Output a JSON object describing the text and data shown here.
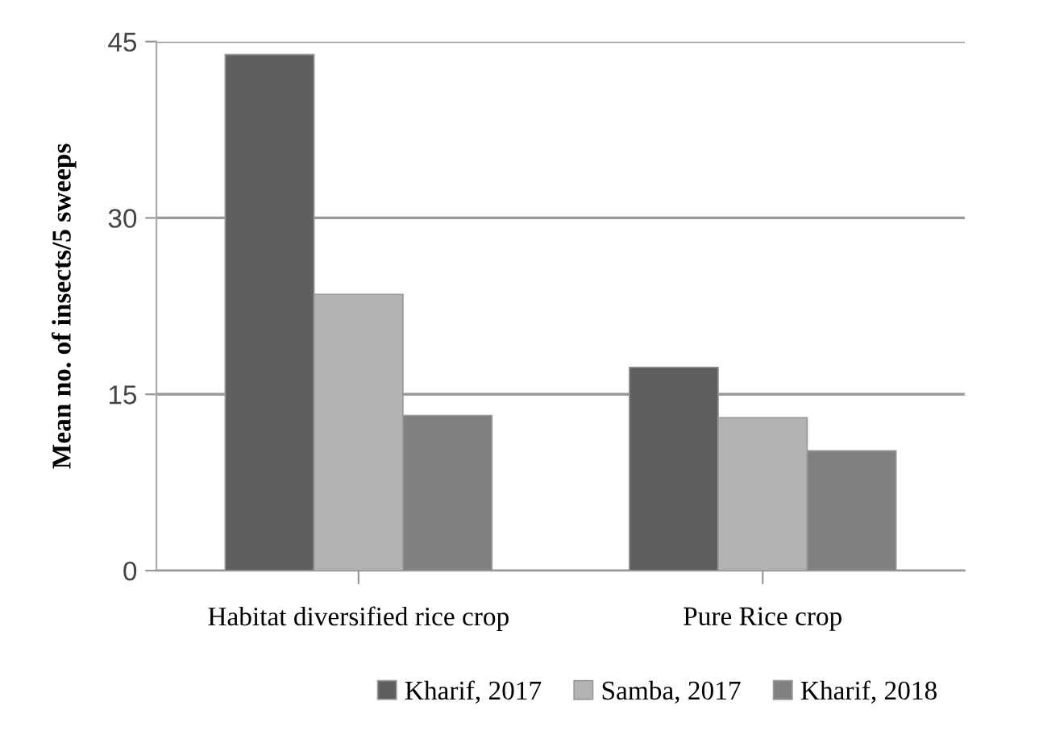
{
  "chart_data": {
    "type": "bar",
    "ylabel": "Mean no. of insects/5 sweeps",
    "categories": [
      "Habitat diversified rice crop",
      "Pure Rice crop"
    ],
    "series": [
      {
        "name": "Kharif, 2017",
        "color": "#5f5f5f",
        "values": [
          43.9,
          17.3
        ]
      },
      {
        "name": "Samba, 2017",
        "color": "#b3b3b3",
        "values": [
          23.5,
          13.0
        ]
      },
      {
        "name": "Kharif, 2018",
        "color": "#808080",
        "values": [
          13.2,
          10.2
        ]
      }
    ],
    "ylim": [
      0,
      45
    ],
    "yticks": [
      0,
      15,
      30,
      45
    ],
    "grid": "y",
    "legend": "bottom"
  }
}
